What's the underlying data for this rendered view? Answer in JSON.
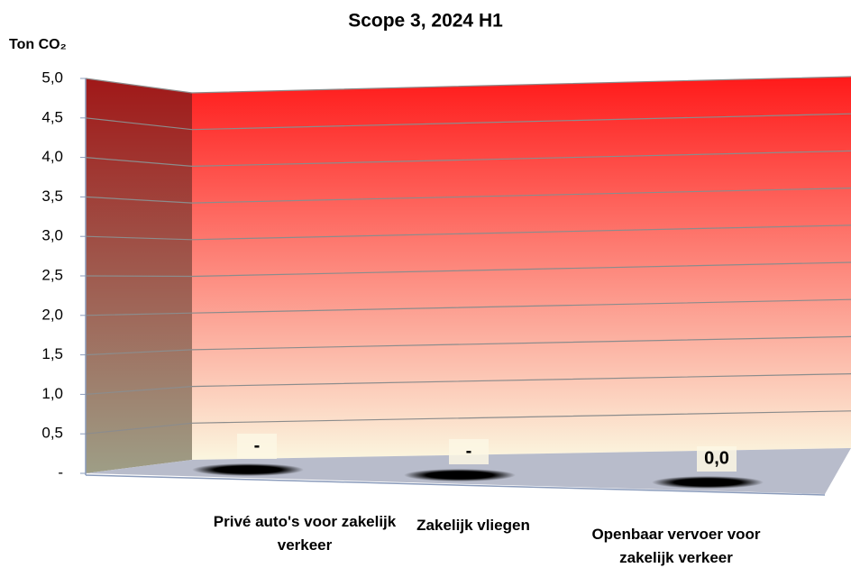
{
  "chart_data": {
    "type": "bar3d",
    "title": "Scope 3, 2024 H1",
    "y_axis_label": "Ton CO₂",
    "categories": [
      "Privé auto's voor zakelijk verkeer",
      "Zakelijk vliegen",
      "Openbaar vervoer voor zakelijk verkeer"
    ],
    "values": [
      0,
      0,
      0
    ],
    "value_labels": [
      "-",
      "-",
      "0,0"
    ],
    "color": "#111111",
    "ylim": [
      0,
      5
    ],
    "yticks": [
      {
        "value": 0,
        "label": "-"
      },
      {
        "value": 0.5,
        "label": "0,5"
      },
      {
        "value": 1,
        "label": "1,0"
      },
      {
        "value": 1.5,
        "label": "1,5"
      },
      {
        "value": 2,
        "label": "2,0"
      },
      {
        "value": 2.5,
        "label": "2,5"
      },
      {
        "value": 3,
        "label": "3,0"
      },
      {
        "value": 3.5,
        "label": "3,5"
      },
      {
        "value": 4,
        "label": "4,0"
      },
      {
        "value": 4.5,
        "label": "4,5"
      },
      {
        "value": 5,
        "label": "5,0"
      }
    ],
    "grid": true
  }
}
